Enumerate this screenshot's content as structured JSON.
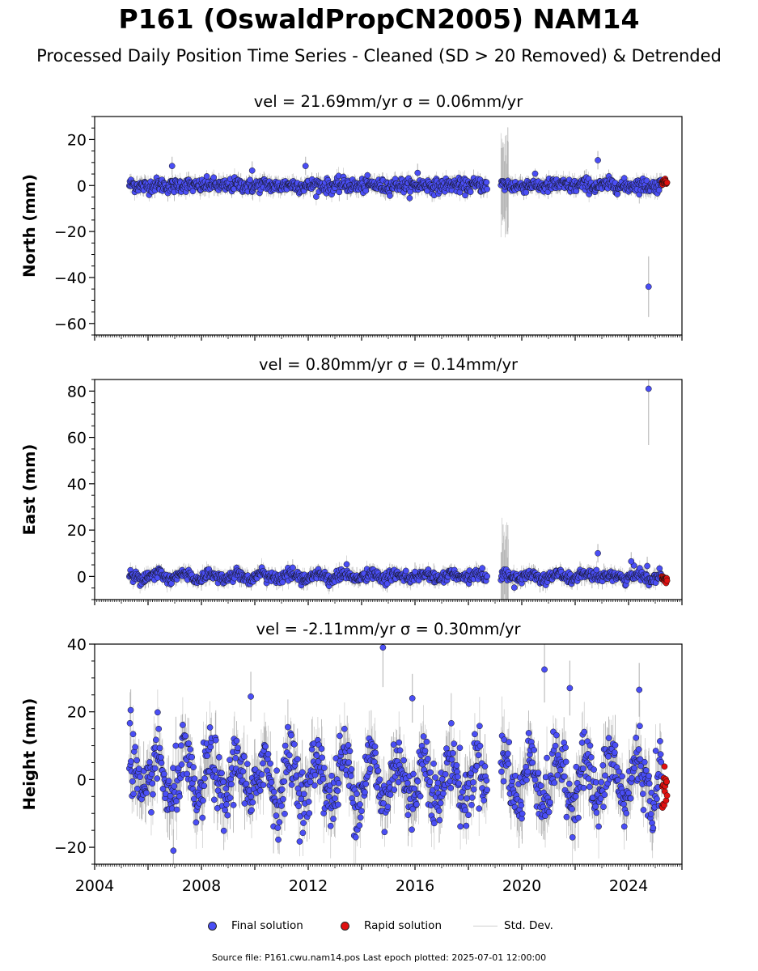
{
  "title": "P161 (OswaldPropCN2005) NAM14",
  "subtitle": "Processed Daily Position Time Series - Cleaned (SD > 20 Removed) & Detrended",
  "legend": {
    "final": "Final solution",
    "rapid": "Rapid solution",
    "std": "Std. Dev."
  },
  "footer": "Source file: P161.cwu.nam14.pos  Last epoch plotted: 2025-07-01 12:00:00",
  "colors": {
    "final": "#4a4ef5",
    "rapid": "#e01010",
    "errorbar": "#7a7a7a"
  },
  "chart_data": [
    {
      "type": "scatter",
      "panel": "north",
      "title": "vel = 21.69mm/yr   σ = 0.06mm/yr",
      "ylabel": "North (mm)",
      "xlim": [
        2004.0,
        2026.0
      ],
      "ylim": [
        -65,
        30
      ],
      "yticks": [
        20,
        0,
        -20,
        -40,
        -60
      ],
      "series": [
        {
          "name": "Final solution",
          "x_range": [
            2005.3,
            2025.25
          ],
          "spread": 1.5,
          "seasonal": 0.4,
          "outliers": [
            [
              2006.9,
              8.5
            ],
            [
              2011.9,
              8.5
            ],
            [
              2022.85,
              11
            ],
            [
              2024.75,
              -44
            ],
            [
              2009.9,
              6.5
            ],
            [
              2016.1,
              5.5
            ]
          ],
          "gap": [
            2018.7,
            2019.2
          ]
        },
        {
          "name": "Rapid solution",
          "x_range": [
            2025.25,
            2025.45
          ],
          "y_center": 1.5,
          "spread": 0.6
        }
      ]
    },
    {
      "type": "scatter",
      "panel": "east",
      "title": "vel = 0.80mm/yr   σ = 0.14mm/yr",
      "ylabel": "East (mm)",
      "xlim": [
        2004.0,
        2026.0
      ],
      "ylim": [
        -10,
        85
      ],
      "yticks": [
        80,
        60,
        40,
        20,
        0
      ],
      "series": [
        {
          "name": "Final solution",
          "x_range": [
            2005.3,
            2025.25
          ],
          "spread": 1.2,
          "seasonal": 1.2,
          "outliers": [
            [
              2024.75,
              81
            ],
            [
              2022.85,
              10
            ],
            [
              2024.1,
              6.5
            ],
            [
              2024.7,
              4.5
            ],
            [
              2016.0,
              2
            ]
          ],
          "gap": [
            2018.7,
            2019.2
          ]
        },
        {
          "name": "Rapid solution",
          "x_range": [
            2025.25,
            2025.45
          ],
          "y_center": -1.0,
          "spread": 0.8
        }
      ]
    },
    {
      "type": "scatter",
      "panel": "height",
      "title": "vel = -2.11mm/yr   σ = 0.30mm/yr",
      "ylabel": "Height (mm)",
      "xlim": [
        2004.0,
        2026.0
      ],
      "ylim": [
        -25,
        40
      ],
      "yticks": [
        40,
        20,
        0,
        -20
      ],
      "xticks": [
        2004,
        2008,
        2012,
        2016,
        2020,
        2024
      ],
      "series": [
        {
          "name": "Final solution",
          "x_range": [
            2005.3,
            2025.25
          ],
          "spread": 4.5,
          "seasonal": 7,
          "outliers": [
            [
              2014.8,
              39
            ],
            [
              2020.85,
              32.5
            ],
            [
              2021.8,
              27
            ],
            [
              2006.95,
              -21
            ],
            [
              2009.85,
              24.5
            ],
            [
              2005.35,
              20.5
            ],
            [
              2024.4,
              26.5
            ],
            [
              2015.9,
              24
            ]
          ],
          "gap": [
            2018.7,
            2019.2
          ]
        },
        {
          "name": "Rapid solution",
          "x_range": [
            2025.25,
            2025.45
          ],
          "y_center": -1.5,
          "spread": 3.5
        }
      ]
    }
  ]
}
